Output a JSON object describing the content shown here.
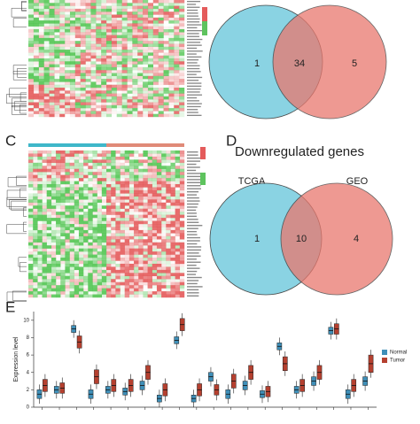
{
  "venn_top": {
    "counts": [
      "1",
      "34",
      "5"
    ]
  },
  "panel_c": {
    "label": "C"
  },
  "panel_d": {
    "label": "D",
    "title": "Downregulated genes",
    "sets": [
      "TCGA",
      "GEO"
    ],
    "counts": [
      "1",
      "10",
      "4"
    ]
  },
  "panel_e": {
    "label": "E"
  },
  "chart_data": {
    "type": "box",
    "ylabel": "Expression level",
    "ylim": [
      0,
      11
    ],
    "yticks": [
      0,
      2,
      4,
      6,
      8,
      10
    ],
    "categories": [
      null,
      null,
      null,
      null,
      null,
      null,
      null,
      null,
      null,
      null,
      null,
      null,
      null,
      null,
      null,
      null,
      null,
      null,
      null,
      null
    ],
    "legend": "right",
    "series": [
      {
        "name": "Normal",
        "color": "#3f8fb8",
        "values": [
          [
            1,
            1.5,
            2
          ],
          [
            1.6,
            2,
            2.4
          ],
          [
            8.6,
            9,
            9.4
          ],
          [
            1,
            1.5,
            2
          ],
          [
            1.6,
            2,
            2.4
          ],
          [
            1.4,
            1.8,
            2.2
          ],
          [
            2,
            2.5,
            3
          ],
          [
            0.6,
            1,
            1.4
          ],
          [
            7.3,
            7.7,
            8.1
          ],
          [
            0.6,
            1,
            1.4
          ],
          [
            3,
            3.5,
            4
          ],
          [
            1,
            1.5,
            2
          ],
          [
            2,
            2.5,
            3
          ],
          [
            1.1,
            1.5,
            1.9
          ],
          [
            6.6,
            7,
            7.4
          ],
          [
            1.6,
            2,
            2.4
          ],
          [
            2.5,
            3,
            3.5
          ],
          [
            8.4,
            8.8,
            9.2
          ],
          [
            1,
            1.5,
            2
          ],
          [
            2.5,
            3,
            3.5
          ]
        ]
      },
      {
        "name": "Tumor",
        "color": "#b5402f",
        "values": [
          [
            1.8,
            2.5,
            3.2
          ],
          [
            1.6,
            2.2,
            2.8
          ],
          [
            6.8,
            7.5,
            8.2
          ],
          [
            2.7,
            3.5,
            4.3
          ],
          [
            1.8,
            2.5,
            3.2
          ],
          [
            1.8,
            2.5,
            3.2
          ],
          [
            3.2,
            4,
            4.8
          ],
          [
            1.3,
            2,
            2.7
          ],
          [
            8.8,
            9.5,
            10.2
          ],
          [
            1.3,
            2,
            2.7
          ],
          [
            1.4,
            2,
            2.6
          ],
          [
            2.2,
            3,
            3.8
          ],
          [
            3.2,
            4,
            4.8
          ],
          [
            1.2,
            1.8,
            2.4
          ],
          [
            4.2,
            5,
            5.8
          ],
          [
            1.8,
            2.5,
            3.2
          ],
          [
            3.2,
            4,
            4.8
          ],
          [
            8.4,
            9,
            9.6
          ],
          [
            1.8,
            2.5,
            3.2
          ],
          [
            4,
            5,
            6
          ]
        ]
      }
    ]
  }
}
